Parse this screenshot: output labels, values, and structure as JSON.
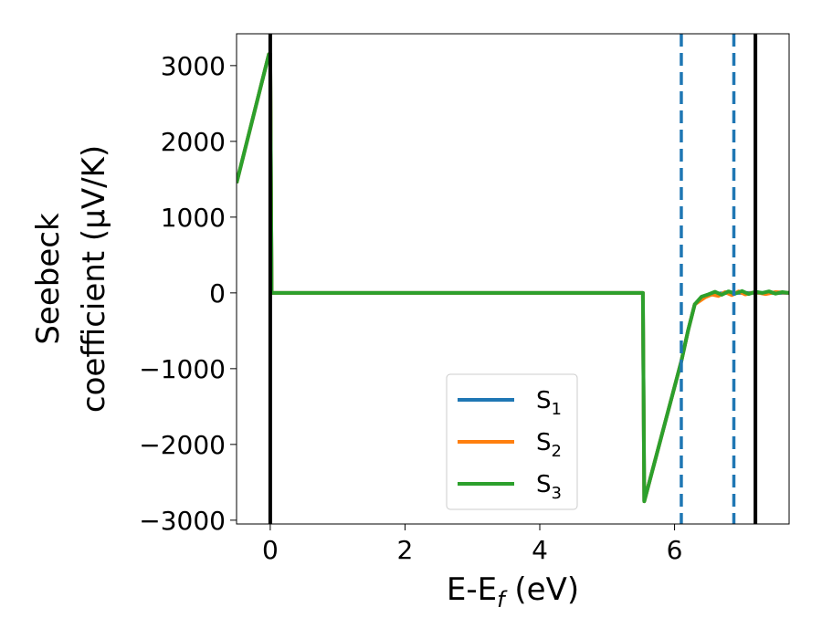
{
  "chart_data": {
    "type": "line",
    "xlabel": "E-E",
    "xlabel_sub": "f",
    "xlabel_unit": " (eV)",
    "ylabel_line1": "Seebeck",
    "ylabel_line2": "coefficient  (μV/K)",
    "xlim": [
      -0.5,
      7.7
    ],
    "ylim": [
      -3050,
      3420
    ],
    "xticks": [
      0,
      2,
      4,
      6
    ],
    "xtick_labels": [
      "0",
      "2",
      "4",
      "6"
    ],
    "yticks": [
      3000,
      2000,
      1000,
      0,
      -1000,
      -2000,
      -3000
    ],
    "ytick_labels": [
      "3000",
      "2000",
      "1000",
      "0",
      "−1000",
      "−2000",
      "−3000"
    ],
    "grid": false,
    "legend_position": "lower-center",
    "series": [
      {
        "name": "S",
        "name_sub": "1",
        "color": "#1f77b4",
        "x": [
          -0.5,
          -0.02,
          0.0,
          0.02,
          5.53,
          5.55,
          6.1,
          6.2,
          6.3,
          6.45,
          6.6,
          6.8,
          7.0,
          7.2,
          7.4,
          7.7
        ],
        "y": [
          1450,
          3150,
          3150,
          0,
          0,
          -2750,
          -900,
          -500,
          -150,
          -50,
          -10,
          0,
          0,
          0,
          0,
          0
        ]
      },
      {
        "name": "S",
        "name_sub": "2",
        "color": "#ff7f0e",
        "x": [
          -0.5,
          -0.02,
          0.0,
          0.02,
          5.53,
          5.55,
          6.1,
          6.2,
          6.3,
          6.45,
          6.55,
          6.65,
          6.75,
          6.85,
          6.95,
          7.05,
          7.2,
          7.35,
          7.5,
          7.7
        ],
        "y": [
          1450,
          3150,
          3150,
          0,
          0,
          -2750,
          -900,
          -500,
          -150,
          -60,
          -20,
          -40,
          10,
          -30,
          20,
          -20,
          10,
          -15,
          10,
          0
        ]
      },
      {
        "name": "S",
        "name_sub": "3",
        "color": "#2ca02c",
        "x": [
          -0.5,
          -0.02,
          0.0,
          0.02,
          5.53,
          5.55,
          6.1,
          6.2,
          6.3,
          6.4,
          6.5,
          6.6,
          6.7,
          6.8,
          6.9,
          7.0,
          7.1,
          7.2,
          7.3,
          7.4,
          7.5,
          7.6,
          7.7
        ],
        "y": [
          1450,
          3150,
          3150,
          0,
          0,
          -2750,
          -900,
          -500,
          -150,
          -50,
          -20,
          15,
          -25,
          20,
          -10,
          25,
          -15,
          15,
          0,
          20,
          -10,
          10,
          0
        ]
      }
    ],
    "vlines": [
      {
        "x": 0.0,
        "style": "solid",
        "color": "#000000"
      },
      {
        "x": 7.2,
        "style": "solid",
        "color": "#000000"
      },
      {
        "x": 6.1,
        "style": "dashed",
        "color": "#1f77b4"
      },
      {
        "x": 6.88,
        "style": "dashed",
        "color": "#1f77b4"
      }
    ]
  }
}
